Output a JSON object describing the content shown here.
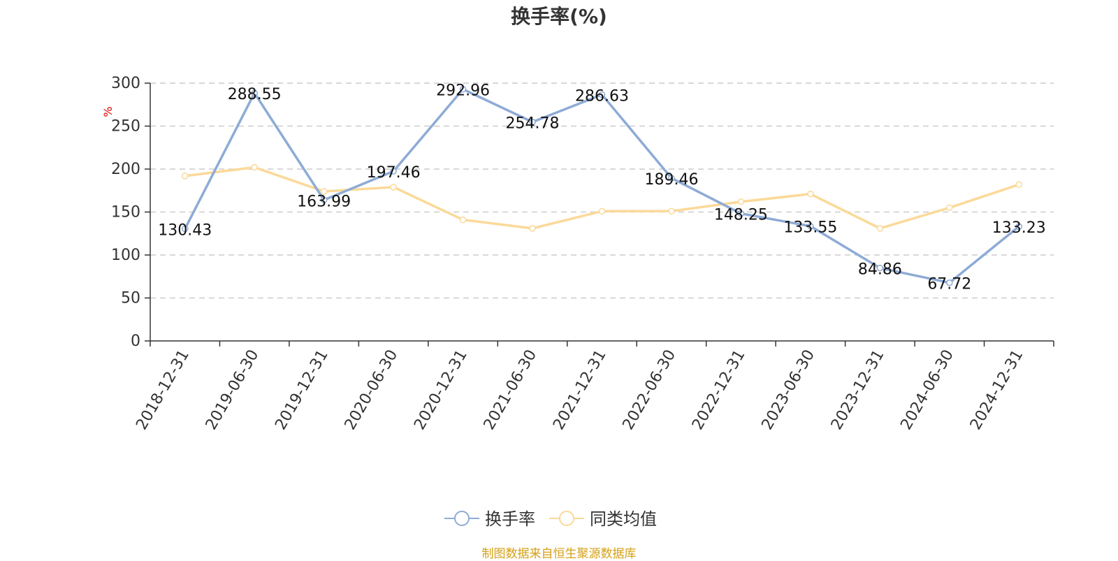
{
  "title": "换手率(%)",
  "source": "制图数据来自恒生聚源数据库",
  "colors": {
    "series1": "#8eabd6",
    "series2": "#fbd999",
    "axis": "#333333",
    "grid": "#cccccc",
    "unit": "#e00000",
    "source": "#d4a017"
  },
  "chart_data": {
    "type": "line",
    "title": "换手率(%)",
    "ylabel": "%",
    "xlabel": "",
    "ylim": [
      0,
      300
    ],
    "yticks": [
      0,
      50,
      100,
      150,
      200,
      250,
      300
    ],
    "grid": true,
    "legend_position": "bottom",
    "categories": [
      "2018-12-31",
      "2019-06-30",
      "2019-12-31",
      "2020-06-30",
      "2020-12-31",
      "2021-06-30",
      "2021-12-31",
      "2022-06-30",
      "2022-12-31",
      "2023-06-30",
      "2023-12-31",
      "2024-06-30",
      "2024-12-31"
    ],
    "series": [
      {
        "name": "换手率",
        "values": [
          130.43,
          288.55,
          163.99,
          197.46,
          292.96,
          254.78,
          286.63,
          189.46,
          148.25,
          133.55,
          84.86,
          67.72,
          133.23
        ],
        "labels": [
          "130.43",
          "288.55",
          "163.99",
          "197.46",
          "292.96",
          "254.78",
          "286.63",
          "189.46",
          "148.25",
          "133.55",
          "84.86",
          "67.72",
          "133.23"
        ]
      },
      {
        "name": "同类均值",
        "values": [
          192,
          202,
          174,
          179,
          141,
          131,
          151,
          151,
          162,
          171,
          131,
          155,
          182
        ]
      }
    ]
  }
}
